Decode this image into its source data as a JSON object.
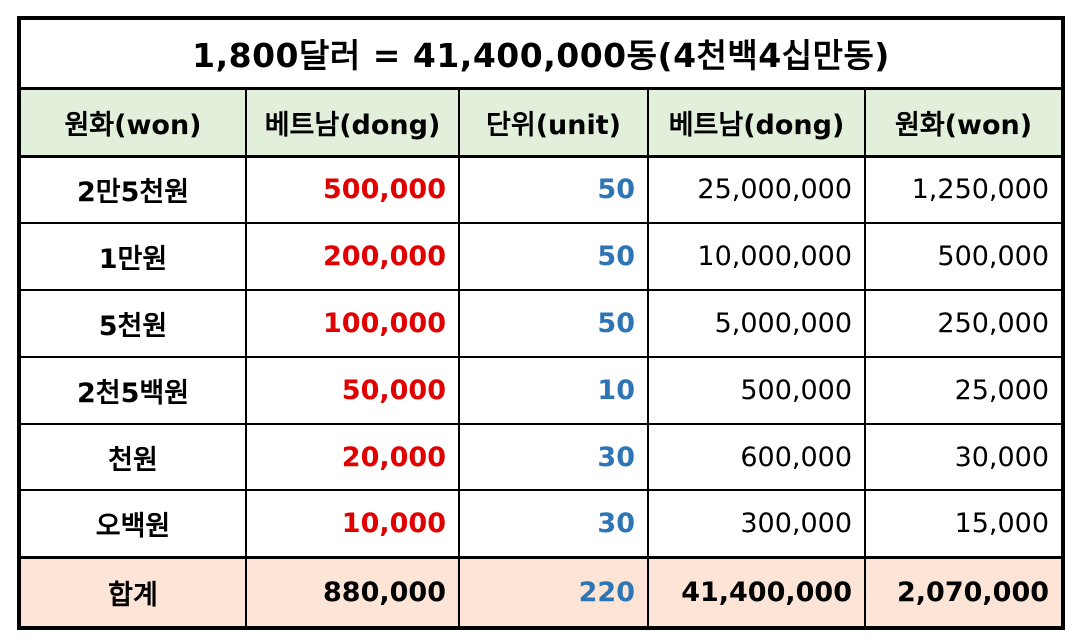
{
  "title": "1,800달러  =  41,400,000동(4천백4십만동)",
  "headers": [
    "원화(won)",
    "베트남(dong)",
    "단위(unit)",
    "베트남(dong)",
    "원화(won)"
  ],
  "rows": [
    {
      "label": "2만5천원",
      "dong": "500,000",
      "unit": "50",
      "dong_total": "25,000,000",
      "won_total": "1,250,000"
    },
    {
      "label": "1만원",
      "dong": "200,000",
      "unit": "50",
      "dong_total": "10,000,000",
      "won_total": "500,000"
    },
    {
      "label": "5천원",
      "dong": "100,000",
      "unit": "50",
      "dong_total": "5,000,000",
      "won_total": "250,000"
    },
    {
      "label": "2천5백원",
      "dong": "50,000",
      "unit": "10",
      "dong_total": "500,000",
      "won_total": "25,000"
    },
    {
      "label": "천원",
      "dong": "20,000",
      "unit": "30",
      "dong_total": "600,000",
      "won_total": "30,000"
    },
    {
      "label": "오백원",
      "dong": "10,000",
      "unit": "30",
      "dong_total": "300,000",
      "won_total": "15,000"
    }
  ],
  "total": {
    "label": "합계",
    "dong": "880,000",
    "unit": "220",
    "dong_total": "41,400,000",
    "won_total": "2,070,000"
  },
  "colors": {
    "header_bg": "#e2efda",
    "total_bg": "#fce4d6",
    "dong_value": "#e00000",
    "unit_value": "#2e75b6"
  }
}
